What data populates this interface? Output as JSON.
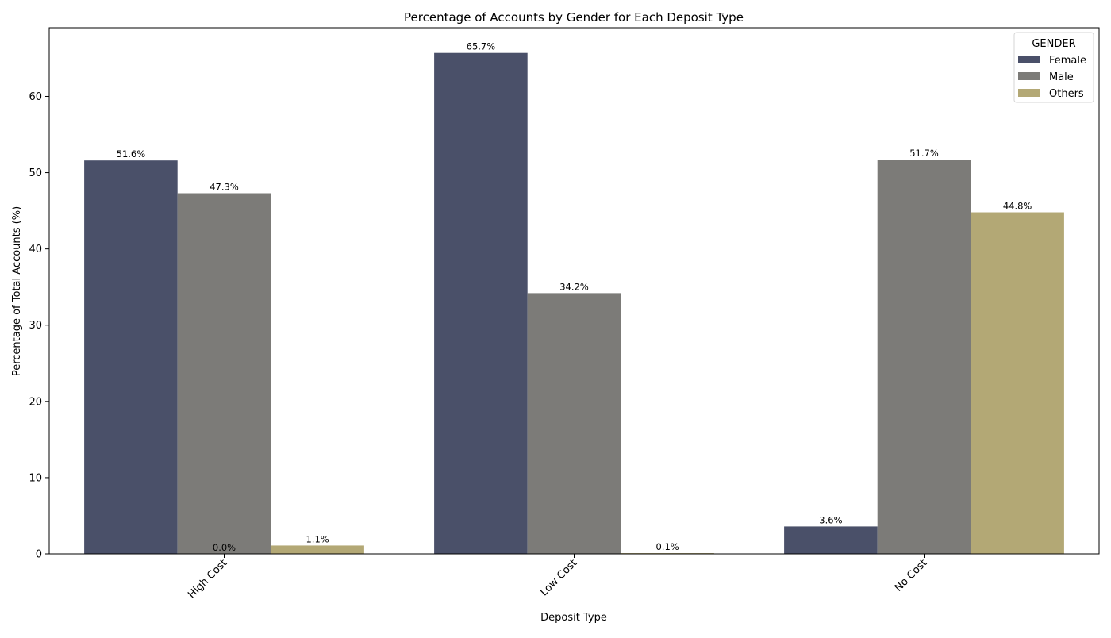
{
  "chart_data": {
    "type": "bar",
    "title": "Percentage of Accounts by Gender for Each Deposit Type",
    "xlabel": "Deposit Type",
    "ylabel": "Percentage of Total Accounts (%)",
    "categories": [
      "High Cost",
      "Low Cost",
      "No Cost"
    ],
    "ylim": [
      0,
      69
    ],
    "yticks": [
      0,
      10,
      20,
      30,
      40,
      50,
      60
    ],
    "grid": false,
    "legend": {
      "title": "GENDER",
      "placement": "top-right"
    },
    "series": [
      {
        "name": "Female",
        "color": "#4a5069",
        "values": [
          51.6,
          65.7,
          3.6
        ],
        "labels": [
          "51.6%",
          "65.7%",
          "3.6%"
        ]
      },
      {
        "name": "Male",
        "color": "#7c7b78",
        "values": [
          47.3,
          34.2,
          51.7
        ],
        "labels": [
          "47.3%",
          "34.2%",
          "51.7%"
        ]
      },
      {
        "name": "Others",
        "color": "#b3a875",
        "values": [
          1.1,
          0.1,
          44.8
        ],
        "labels": [
          "1.1%",
          "0.1%",
          "44.8%"
        ]
      }
    ],
    "annotations": [
      {
        "category": "High Cost",
        "text": "0.0%"
      }
    ]
  }
}
